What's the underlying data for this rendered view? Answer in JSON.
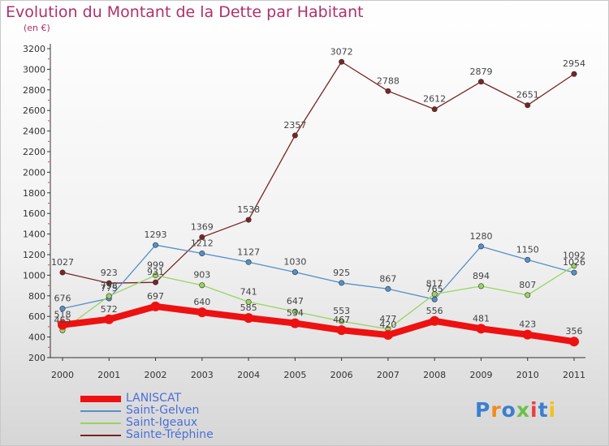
{
  "title": "Evolution du Montant de la Dette par Habitant",
  "subtitle": "(en €)",
  "logo_text": "Proxiti",
  "colors": {
    "title": "#b0306a",
    "axis": "#333333",
    "grid_tick": "#e84040"
  },
  "chart_data": {
    "type": "line",
    "title": "Evolution du Montant de la Dette par Habitant",
    "subtitle": "(en €)",
    "xlabel": "",
    "ylabel": "",
    "x": [
      "2000",
      "2001",
      "2002",
      "2003",
      "2004",
      "2005",
      "2006",
      "2007",
      "2008",
      "2009",
      "2010",
      "2011"
    ],
    "ylim": [
      200,
      3200
    ],
    "yticks": [
      200,
      400,
      600,
      800,
      1000,
      1200,
      1400,
      1600,
      1800,
      2000,
      2200,
      2400,
      2600,
      2800,
      3000,
      3200
    ],
    "legend_position": "bottom-left",
    "series": [
      {
        "name": "LANISCAT",
        "color": "#ee1111",
        "values": [
          518,
          572,
          697,
          640,
          585,
          534,
          467,
          420,
          556,
          481,
          423,
          356
        ]
      },
      {
        "name": "Saint-Gelven",
        "color": "#5590c8",
        "values": [
          676,
          775,
          1293,
          1212,
          1127,
          1030,
          925,
          867,
          765,
          1280,
          1150,
          1026
        ]
      },
      {
        "name": "Saint-Igeaux",
        "color": "#99d460",
        "values": [
          465,
          798,
          999,
          903,
          741,
          647,
          553,
          477,
          817,
          894,
          807,
          1092
        ]
      },
      {
        "name": "Sainte-Tréphine",
        "color": "#7a2424",
        "values": [
          1027,
          923,
          931,
          1369,
          1538,
          2357,
          3072,
          2788,
          2612,
          2879,
          2651,
          2954
        ]
      }
    ]
  }
}
